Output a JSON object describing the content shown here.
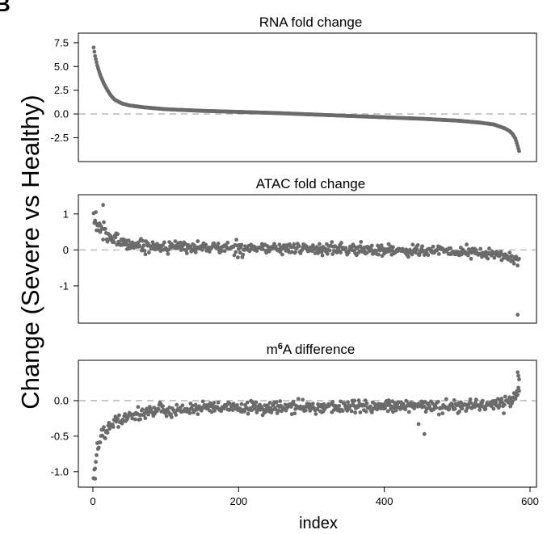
{
  "figure": {
    "panel_label": "B",
    "ylabel": "Change (Severe vs Healthy)",
    "xlabel": "index"
  },
  "chart_data": [
    {
      "type": "scatter",
      "title": "RNA fold change",
      "xlim": [
        0,
        600
      ],
      "ylim": [
        -4.5,
        8
      ],
      "yticks": [
        7.5,
        5.0,
        2.5,
        0.0,
        -2.5
      ],
      "ytick_labels": [
        "7.5",
        "5.0",
        "2.5",
        "0.0",
        "-2.5"
      ],
      "xticks": [],
      "zero_line": true,
      "point_color": "#6b6b6b",
      "n_points": 585,
      "sorted": "descending",
      "series_profile": {
        "x": [
          1,
          3,
          6,
          10,
          15,
          20,
          25,
          30,
          40,
          50,
          70,
          100,
          150,
          200,
          250,
          300,
          350,
          400,
          450,
          500,
          530,
          550,
          565,
          572,
          576,
          580,
          582,
          585
        ],
        "y": [
          7.0,
          6.1,
          5.1,
          4.1,
          3.2,
          2.5,
          1.9,
          1.5,
          1.1,
          0.9,
          0.7,
          0.5,
          0.33,
          0.22,
          0.1,
          -0.05,
          -0.2,
          -0.35,
          -0.5,
          -0.7,
          -0.9,
          -1.1,
          -1.5,
          -1.8,
          -2.1,
          -2.6,
          -3.1,
          -3.9
        ]
      }
    },
    {
      "type": "scatter",
      "title": "ATAC fold change",
      "xlim": [
        0,
        600
      ],
      "ylim": [
        -1.9,
        1.4
      ],
      "yticks": [
        1,
        0,
        -1
      ],
      "ytick_labels": [
        "1",
        "0",
        "-1"
      ],
      "xticks": [],
      "zero_line": true,
      "point_color": "#6b6b6b",
      "n_points": 585,
      "trend_profile": {
        "x": [
          1,
          5,
          10,
          20,
          30,
          50,
          80,
          150,
          300,
          450,
          520,
          560,
          585
        ],
        "y": [
          0.9,
          0.7,
          0.55,
          0.38,
          0.28,
          0.17,
          0.1,
          0.07,
          0.03,
          -0.02,
          -0.07,
          -0.15,
          -0.28
        ]
      },
      "outliers": [
        {
          "x": 4,
          "y": 1.05
        },
        {
          "x": 14,
          "y": 1.25
        },
        {
          "x": 583,
          "y": -1.8
        }
      ]
    },
    {
      "type": "scatter",
      "title": "m⁶A difference",
      "title_parts": {
        "pre": "m",
        "sup": "6",
        "post": "A difference"
      },
      "xlim": [
        0,
        600
      ],
      "ylim": [
        -1.15,
        0.5
      ],
      "yticks": [
        0.0,
        -0.5,
        -1.0
      ],
      "ytick_labels": [
        "0.0",
        "-0.5",
        "-1.0"
      ],
      "xticks": [
        0,
        200,
        400,
        600
      ],
      "xtick_labels": [
        "0",
        "200",
        "400",
        "600"
      ],
      "zero_line": true,
      "point_color": "#6b6b6b",
      "n_points": 585,
      "trend_profile": {
        "x": [
          1,
          5,
          10,
          20,
          30,
          50,
          80,
          150,
          300,
          450,
          520,
          560,
          575,
          585
        ],
        "y": [
          -1.0,
          -0.75,
          -0.55,
          -0.38,
          -0.28,
          -0.2,
          -0.15,
          -0.11,
          -0.09,
          -0.08,
          -0.07,
          -0.04,
          0.0,
          0.15
        ]
      },
      "outliers": [
        {
          "x": 3,
          "y": -1.1
        },
        {
          "x": 455,
          "y": -0.47
        },
        {
          "x": 447,
          "y": -0.33
        },
        {
          "x": 583,
          "y": 0.4
        },
        {
          "x": 584,
          "y": 0.35
        },
        {
          "x": 585,
          "y": 0.3
        }
      ]
    }
  ]
}
